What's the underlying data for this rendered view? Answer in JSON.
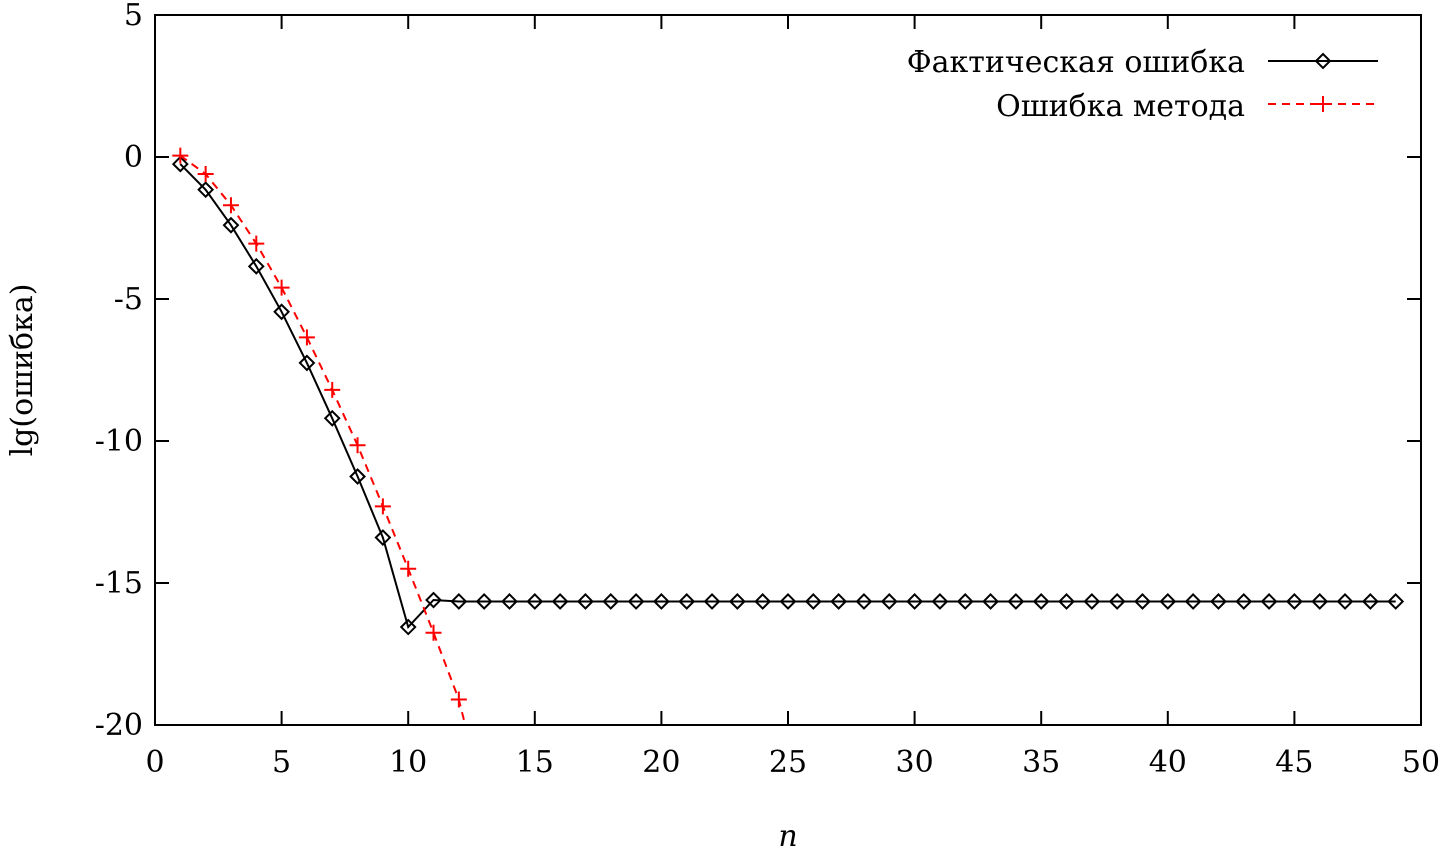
{
  "chart_data": {
    "type": "line",
    "title": "",
    "xlabel": "n",
    "ylabel": "lg(ошибка)",
    "xlim": [
      0,
      50
    ],
    "ylim": [
      -20,
      5
    ],
    "x_ticks": [
      0,
      5,
      10,
      15,
      20,
      25,
      30,
      35,
      40,
      45,
      50
    ],
    "y_ticks": [
      5,
      0,
      -5,
      -10,
      -15,
      -20
    ],
    "grid": false,
    "legend_position": "top-right",
    "series": [
      {
        "name": "Фактическая ошибка",
        "color": "#000000",
        "line_style": "solid",
        "marker": "diamond",
        "x": [
          1,
          2,
          3,
          4,
          5,
          6,
          7,
          8,
          9,
          10,
          11,
          12,
          13,
          14,
          15,
          16,
          17,
          18,
          19,
          20,
          21,
          22,
          23,
          24,
          25,
          26,
          27,
          28,
          29,
          30,
          31,
          32,
          33,
          34,
          35,
          36,
          37,
          38,
          39,
          40,
          41,
          42,
          43,
          44,
          45,
          46,
          47,
          48,
          49
        ],
        "y": [
          -0.25,
          -1.15,
          -2.4,
          -3.85,
          -5.45,
          -7.25,
          -9.2,
          -11.25,
          -13.4,
          -16.55,
          -15.6,
          -15.65,
          -15.65,
          -15.65,
          -15.65,
          -15.65,
          -15.65,
          -15.65,
          -15.65,
          -15.65,
          -15.65,
          -15.65,
          -15.65,
          -15.65,
          -15.65,
          -15.65,
          -15.65,
          -15.65,
          -15.65,
          -15.65,
          -15.65,
          -15.65,
          -15.65,
          -15.65,
          -15.65,
          -15.65,
          -15.65,
          -15.65,
          -15.65,
          -15.65,
          -15.65,
          -15.65,
          -15.65,
          -15.65,
          -15.65,
          -15.65,
          -15.65,
          -15.65,
          -15.65
        ]
      },
      {
        "name": "Ошибка метода",
        "color": "#ff0000",
        "line_style": "dashed",
        "marker": "plus",
        "x": [
          1,
          2,
          3,
          4,
          5,
          6,
          7,
          8,
          9,
          10,
          11,
          12,
          12.25
        ],
        "y": [
          0.05,
          -0.6,
          -1.7,
          -3.05,
          -4.6,
          -6.35,
          -8.2,
          -10.15,
          -12.3,
          -14.5,
          -16.75,
          -19.1,
          -20.0
        ],
        "marker_indices": [
          0,
          1,
          2,
          3,
          4,
          5,
          6,
          7,
          8,
          9,
          10,
          11
        ]
      }
    ]
  }
}
